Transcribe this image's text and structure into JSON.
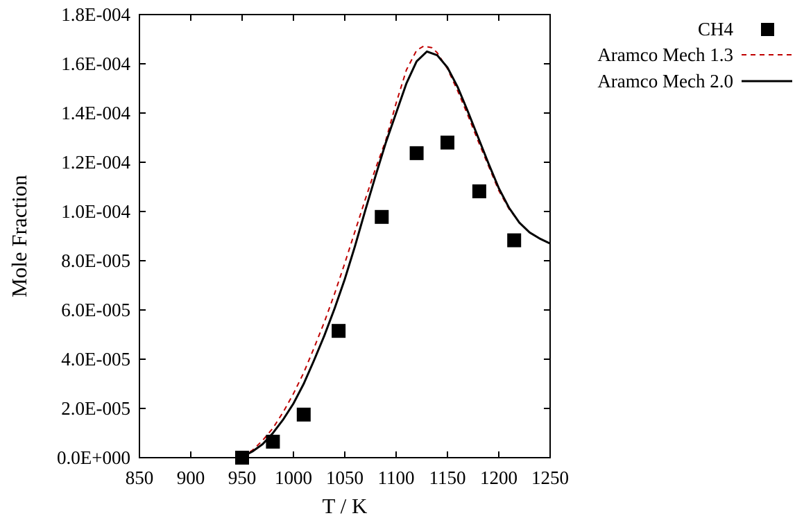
{
  "chart_data": {
    "type": "scatter",
    "title": "",
    "xlabel": "T / K",
    "ylabel": "Mole Fraction",
    "xlim": [
      850,
      1250
    ],
    "ylim": [
      0,
      0.00018
    ],
    "x_ticks": [
      850,
      900,
      950,
      1000,
      1050,
      1100,
      1150,
      1200,
      1250
    ],
    "x_tick_labels": [
      "850",
      "900",
      "950",
      "1000",
      "1050",
      "1100",
      "1150",
      "1200",
      "1250"
    ],
    "y_ticks": [
      0,
      2e-05,
      4e-05,
      6e-05,
      8e-05,
      0.0001,
      0.00012,
      0.00014,
      0.00016,
      0.00018
    ],
    "y_tick_labels": [
      "0.0E+000",
      "2.0E-005",
      "4.0E-005",
      "6.0E-005",
      "8.0E-005",
      "1.0E-004",
      "1.2E-004",
      "1.4E-004",
      "1.6E-004",
      "1.8E-004"
    ],
    "grid": false,
    "legend_position": "outside top-right",
    "series": [
      {
        "name": "CH4",
        "kind": "points",
        "marker": "filled-square",
        "color": "#000000",
        "x": [
          950,
          980,
          1010,
          1044,
          1086,
          1120,
          1150,
          1181,
          1215
        ],
        "y": [
          0.0,
          6.5e-06,
          1.75e-05,
          5.15e-05,
          9.78e-05,
          0.0001237,
          0.000128,
          0.0001082,
          8.83e-05
        ]
      },
      {
        "name": "Aramco Mech 1.3",
        "kind": "line",
        "style": "dashed",
        "color": "#c00000",
        "x": [
          950,
          960,
          970,
          980,
          990,
          1000,
          1010,
          1020,
          1030,
          1040,
          1050,
          1060,
          1070,
          1080,
          1090,
          1100,
          1110,
          1120,
          1127,
          1135,
          1140,
          1150,
          1160,
          1170,
          1180,
          1190,
          1200,
          1210,
          1220,
          1230,
          1240,
          1250
        ],
        "y": [
          5e-07,
          3e-06,
          7e-06,
          1.2e-05,
          1.85e-05,
          2.6e-05,
          3.45e-05,
          4.45e-05,
          5.5e-05,
          6.65e-05,
          7.9e-05,
          9.2e-05,
          0.000105,
          0.0001175,
          0.000129,
          0.000144,
          0.0001575,
          0.0001655,
          0.0001672,
          0.0001665,
          0.0001645,
          0.000158,
          0.000149,
          0.000139,
          0.0001285,
          0.0001185,
          0.0001085,
          0.000101,
          9.55e-05,
          9.15e-05,
          8.9e-05,
          8.7e-05
        ]
      },
      {
        "name": "Aramco Mech 2.0",
        "kind": "line",
        "style": "solid",
        "color": "#000000",
        "x": [
          950,
          960,
          970,
          980,
          990,
          1000,
          1010,
          1020,
          1030,
          1040,
          1050,
          1060,
          1070,
          1080,
          1090,
          1100,
          1110,
          1120,
          1130,
          1140,
          1150,
          1160,
          1170,
          1180,
          1190,
          1200,
          1210,
          1220,
          1230,
          1240,
          1250
        ],
        "y": [
          3e-07,
          2.5e-06,
          5.5e-06,
          1e-05,
          1.55e-05,
          2.2e-05,
          3e-05,
          3.95e-05,
          4.95e-05,
          6.05e-05,
          7.25e-05,
          8.6e-05,
          0.0001005,
          0.0001145,
          0.000128,
          0.00014,
          0.000152,
          0.000161,
          0.000165,
          0.0001635,
          0.0001585,
          0.0001505,
          0.0001405,
          0.00013,
          0.0001195,
          0.0001095,
          0.0001015,
          9.55e-05,
          9.15e-05,
          8.9e-05,
          8.7e-05
        ]
      }
    ]
  }
}
